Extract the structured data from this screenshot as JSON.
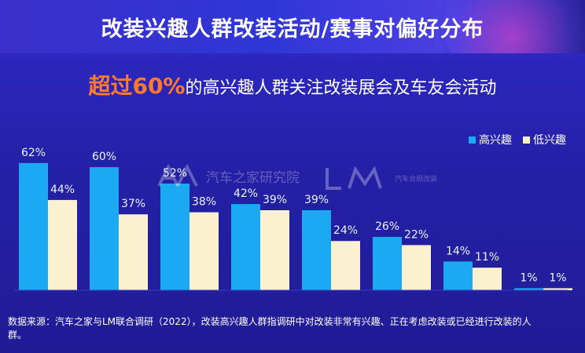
{
  "title": "改装兴趣人群改装活动/赛事对偏好分布",
  "subtitle": {
    "highlight": "超过60%",
    "rest": "的高兴趣人群关注改装展会及车友会活动"
  },
  "legend": {
    "high": "高兴趣",
    "low": "低兴趣"
  },
  "watermarks": {
    "autohome": "汽车之家研究院",
    "lm": "汽车合规改装"
  },
  "source": "数据来源：汽车之家与LM联合调研（2022），改装高兴趣人群指调研中对改装非常有兴趣、正在考虑改装或已经进行改装的人群。",
  "colors": {
    "high": "#1aa9f2",
    "low": "#fbf0d0",
    "accent": "#ff7a2a"
  },
  "chart_data": {
    "type": "bar",
    "categories": [
      "",
      "",
      "",
      "",
      "",
      "",
      "",
      ""
    ],
    "series": [
      {
        "name": "高兴趣",
        "values": [
          62,
          60,
          52,
          42,
          39,
          26,
          14,
          1
        ],
        "labels": [
          "62%",
          "60%",
          "52%",
          "42%",
          "39%",
          "26%",
          "14%",
          "1%"
        ]
      },
      {
        "name": "低兴趣",
        "values": [
          44,
          37,
          38,
          39,
          24,
          22,
          11,
          1
        ],
        "labels": [
          "44%",
          "37%",
          "38%",
          "39%",
          "24%",
          "22%",
          "11%",
          "1%"
        ]
      }
    ],
    "ylim": [
      0,
      65
    ],
    "legend_position": "top-right",
    "grid": false
  }
}
